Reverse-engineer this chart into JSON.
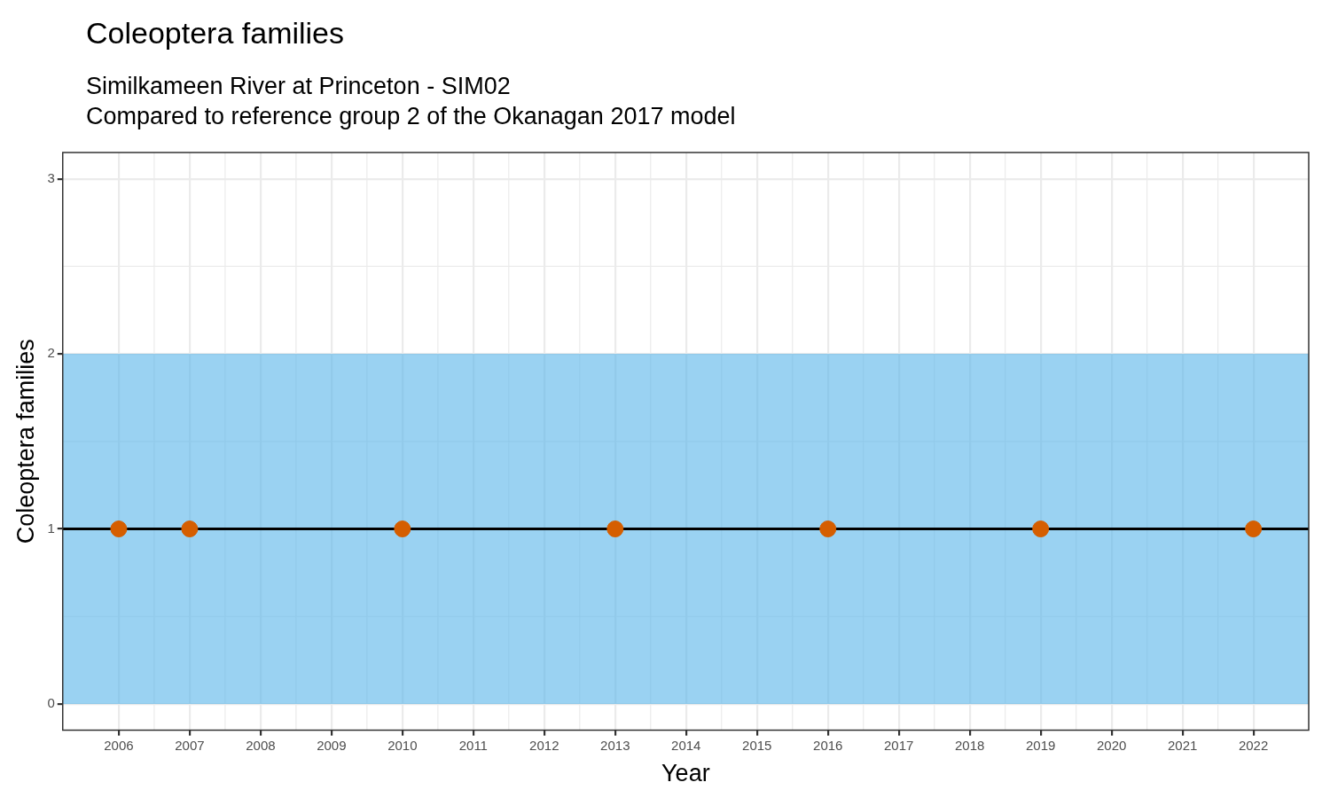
{
  "chart_data": {
    "type": "scatter",
    "title": "Coleoptera families",
    "subtitle": "Similkameen River at Princeton - SIM02\nCompared to reference group 2 of the Okanagan 2017 model",
    "xlabel": "Year",
    "ylabel": "Coleoptera families",
    "series": [
      {
        "color": "#d55e00",
        "x": [
          2006,
          2007,
          2010,
          2013,
          2016,
          2019,
          2022
        ],
        "values": [
          1,
          1,
          1,
          1,
          1,
          1,
          1
        ]
      }
    ],
    "ref_lines": [
      {
        "axis": "y",
        "value": 1,
        "color": "#000000",
        "line_style": "solid"
      }
    ],
    "bands": [
      {
        "axis": "y",
        "from": 0,
        "to": 2,
        "color": "#56b4e9"
      }
    ],
    "xlim": [
      2005.21,
      2022.78
    ],
    "xticks": [
      2006,
      2007,
      2008,
      2009,
      2010,
      2011,
      2012,
      2013,
      2014,
      2015,
      2016,
      2017,
      2018,
      2019,
      2020,
      2021,
      2022
    ],
    "ylim": [
      -0.15,
      3.15
    ],
    "yticks": [
      0,
      1,
      2,
      3
    ],
    "grid": true,
    "legend": false,
    "marker": "circle"
  }
}
